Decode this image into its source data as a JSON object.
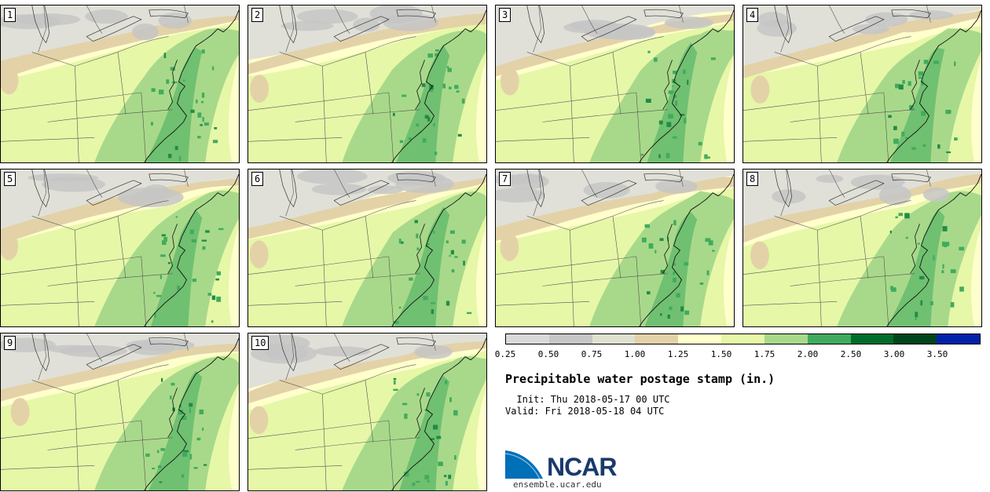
{
  "panels": [
    {
      "label": "1"
    },
    {
      "label": "2"
    },
    {
      "label": "3"
    },
    {
      "label": "4"
    },
    {
      "label": "5"
    },
    {
      "label": "6"
    },
    {
      "label": "7"
    },
    {
      "label": "8"
    },
    {
      "label": "9"
    },
    {
      "label": "10"
    }
  ],
  "colorbar": {
    "colors": [
      "#d9d9d9",
      "#c6c6c6",
      "#e0e0d0",
      "#e3d2a8",
      "#ffffcc",
      "#e6f7a8",
      "#a8d98a",
      "#41ab5d",
      "#006d2c",
      "#00441b",
      "#0022aa"
    ],
    "ticks": [
      "0.25",
      "0.50",
      "0.75",
      "1.00",
      "1.25",
      "1.50",
      "1.75",
      "2.00",
      "2.50",
      "3.00",
      "3.50"
    ]
  },
  "title": "Precipitable water postage stamp (in.)",
  "init": "  Init: Thu 2018-05-17 00 UTC",
  "valid": "Valid: Fri 2018-05-18 04 UTC",
  "logo": {
    "wordmark": "NCAR",
    "url": "ensemble.ucar.edu",
    "colors": {
      "swoosh": "#0070b8",
      "text": "#1a3a6b"
    }
  },
  "map_colors": {
    "dry_gray": "#c6c6c6",
    "light_gray": "#e0e0d8",
    "tan": "#e3d2a8",
    "pale_yellow": "#ffffcc",
    "yellow_green": "#e6f7a8",
    "light_green": "#a8d98a",
    "green": "#41ab5d",
    "dark_green": "#238b45"
  }
}
